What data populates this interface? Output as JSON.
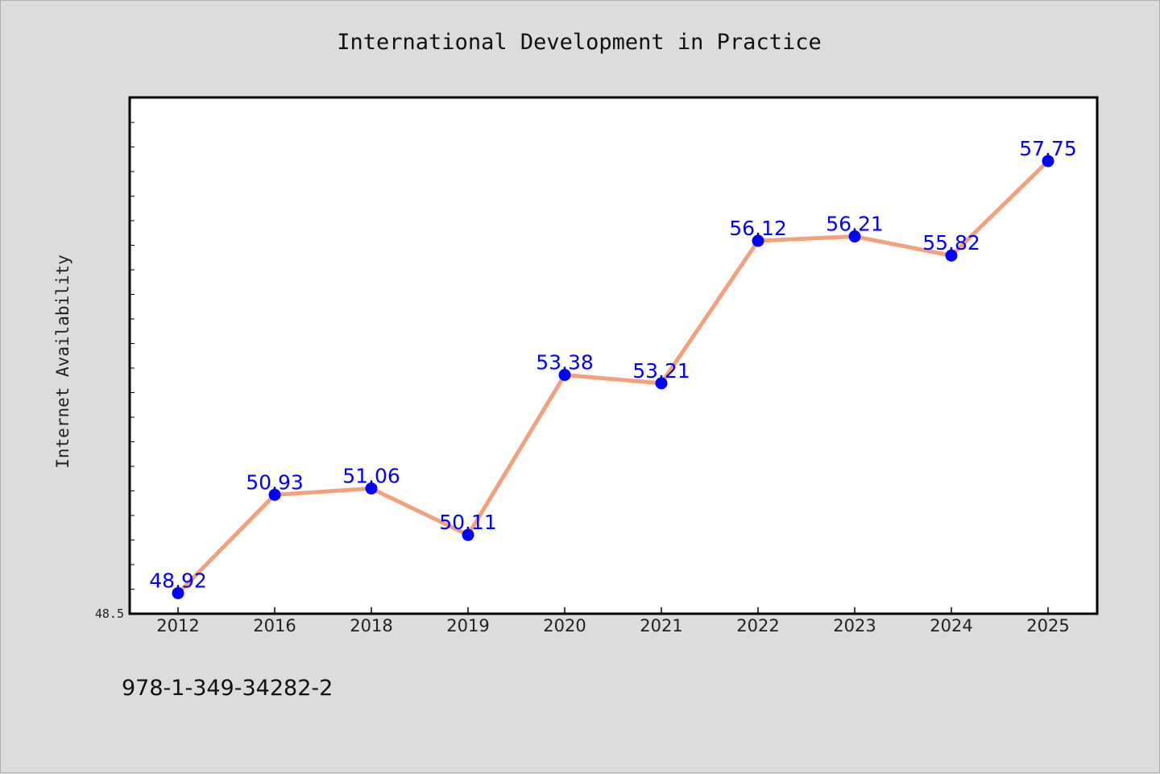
{
  "chart_data": {
    "type": "line",
    "title": "International Development in Practice",
    "xlabel": "",
    "ylabel": "Internet Availability",
    "categories": [
      "2012",
      "2016",
      "2018",
      "2019",
      "2020",
      "2021",
      "2022",
      "2023",
      "2024",
      "2025"
    ],
    "series": [
      {
        "values": [
          48.92,
          50.93,
          51.06,
          50.11,
          53.38,
          53.21,
          56.12,
          56.21,
          55.82,
          57.75
        ],
        "value_labels": [
          "48.92",
          "50.93",
          "51.06",
          "50.11",
          "53.38",
          "53.21",
          "56.12",
          "56.21",
          "55.82",
          "57.75"
        ],
        "line_color": "#f4a07c",
        "marker_color": "#0000ff"
      }
    ],
    "ylim": [
      48.5,
      59.05
    ],
    "y_min_label": "48.5",
    "grid": false,
    "legend": "none"
  },
  "footer": {
    "isbn": "978-1-349-34282-2"
  },
  "colors": {
    "background": "#dcdcdc",
    "plot_background": "#ffffff",
    "line": "#f4a07c",
    "marker": "#0000ff",
    "value_label": "#0000ff"
  }
}
